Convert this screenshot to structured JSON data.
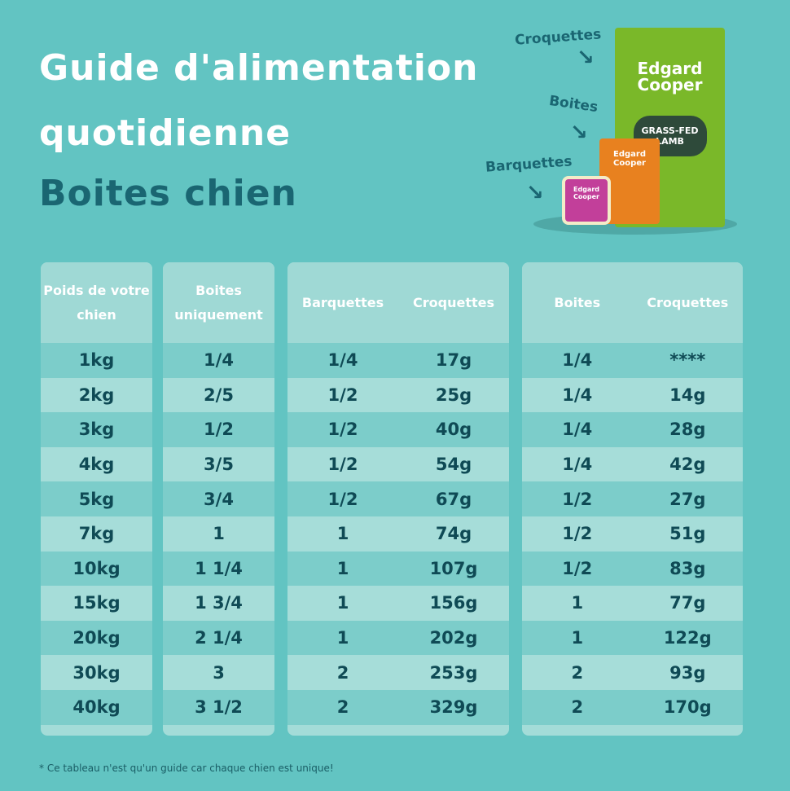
{
  "header": {
    "title_line1": "Guide d'alimentation",
    "title_line2": "quotidienne",
    "subtitle": "Boites chien"
  },
  "products": {
    "labels": [
      "Croquettes",
      "Boites",
      "Barquettes"
    ],
    "brand": "Edgard Cooper",
    "bag_text": "GRASS-FED LAMB",
    "colors": {
      "bag": "#7ab829",
      "can": "#e8811f",
      "tray": "#c23f9a"
    }
  },
  "table": {
    "headers": {
      "weight": "Poids de votre chien",
      "boites_only": "Boites uniquement",
      "g2_barquettes": "Barquettes",
      "g2_croquettes": "Croquettes",
      "g3_boites": "Boites",
      "g3_croquettes": "Croquettes"
    },
    "rows": [
      [
        "1kg",
        "1/4",
        "1/4",
        "17g",
        "1/4",
        "****"
      ],
      [
        "2kg",
        "2/5",
        "1/2",
        "25g",
        "1/4",
        "14g"
      ],
      [
        "3kg",
        "1/2",
        "1/2",
        "40g",
        "1/4",
        "28g"
      ],
      [
        "4kg",
        "3/5",
        "1/2",
        "54g",
        "1/4",
        "42g"
      ],
      [
        "5kg",
        "3/4",
        "1/2",
        "67g",
        "1/2",
        "27g"
      ],
      [
        "7kg",
        "1",
        "1",
        "74g",
        "1/2",
        "51g"
      ],
      [
        "10kg",
        "1 1/4",
        "1",
        "107g",
        "1/2",
        "83g"
      ],
      [
        "15kg",
        "1 3/4",
        "1",
        "156g",
        "1",
        "77g"
      ],
      [
        "20kg",
        "2 1/4",
        "1",
        "202g",
        "1",
        "122g"
      ],
      [
        "30kg",
        "3",
        "2",
        "253g",
        "2",
        "93g"
      ],
      [
        "40kg",
        "3 1/2",
        "2",
        "329g",
        "2",
        "170g"
      ]
    ]
  },
  "footnote": "* Ce tableau n'est qu'un guide car chaque chien est unique!",
  "colors": {
    "background": "#62c4c2",
    "text_dark": "#0f4a55",
    "title_accent": "#1a6672"
  }
}
